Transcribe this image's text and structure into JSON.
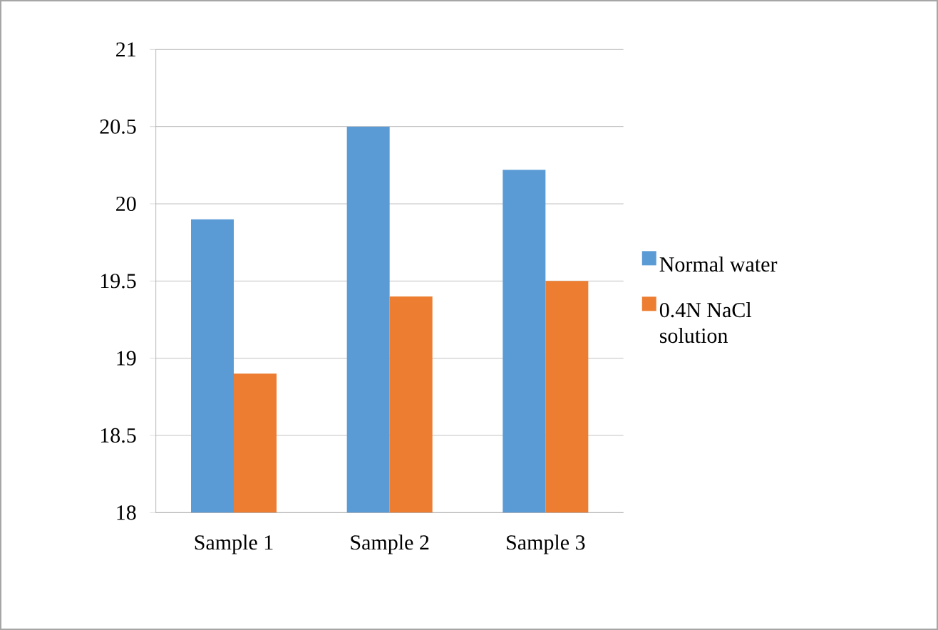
{
  "chart_data": {
    "type": "bar",
    "categories": [
      "Sample 1",
      "Sample 2",
      "Sample 3"
    ],
    "series": [
      {
        "name": "Normal water",
        "color": "#5b9bd5",
        "values": [
          19.9,
          20.5,
          20.22
        ]
      },
      {
        "name": "0.4N NaCl solution",
        "color": "#ed7d31",
        "values": [
          18.9,
          19.4,
          19.5
        ]
      }
    ],
    "ylim": [
      18,
      21
    ],
    "yticks": [
      18,
      18.5,
      19,
      19.5,
      20,
      20.5,
      21
    ],
    "grid": "y",
    "legend": "right"
  }
}
